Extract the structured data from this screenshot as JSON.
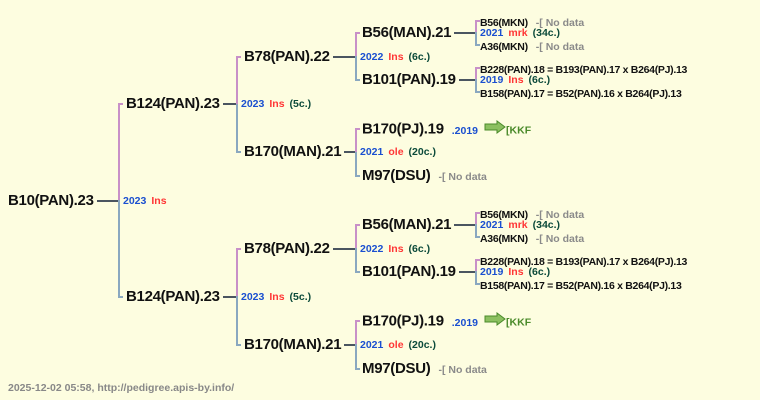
{
  "colors": {
    "year": "#1a4fd0",
    "class": "#ff3535",
    "count": "#0b4a3a",
    "no_data": "#8a8a8a",
    "link": "#4a8a2a"
  },
  "tree": {
    "name": "B10(PAN).23",
    "label": {
      "year": "2023",
      "cls": "Ins",
      "count": ""
    },
    "children": [
      {
        "name": "B124(PAN).23",
        "label": {
          "year": "2023",
          "cls": "Ins",
          "count": "(5c.)"
        },
        "children": [
          {
            "name": "B78(PAN).22",
            "label": {
              "year": "2022",
              "cls": "Ins",
              "count": "(6c.)"
            },
            "children": [
              {
                "name": "B56(MAN).21",
                "label": {
                  "year": "2021",
                  "cls": "mrk",
                  "count": "(34c.)"
                },
                "children": [
                  {
                    "name": "B56(MKN)",
                    "note": "-[ No data"
                  },
                  {
                    "name": "A36(MKN)",
                    "note": "-[ No data"
                  }
                ]
              },
              {
                "name": "B101(PAN).19",
                "label": {
                  "year": "2019",
                  "cls": "Ins",
                  "count": "(6c.)"
                },
                "children": [
                  {
                    "name": "B228(PAN).18 = B193(PAN).17 x B264(PJ).13"
                  },
                  {
                    "name": "B158(PAN).17 = B52(PAN).16 x B264(PJ).13"
                  }
                ]
              }
            ]
          },
          {
            "name": "B170(MAN).21",
            "label": {
              "year": "2021",
              "cls": "ole",
              "count": "(20c.)"
            },
            "children": [
              {
                "name": "B170(PJ).19",
                "link_year": ".2019",
                "link_target": "[KKF",
                "icon": "arrow-right-icon"
              },
              {
                "name": "M97(DSU)",
                "note": "-[ No data"
              }
            ]
          }
        ]
      },
      {
        "name": "B124(PAN).23",
        "label": {
          "year": "2023",
          "cls": "Ins",
          "count": "(5c.)"
        },
        "children": [
          {
            "name": "B78(PAN).22",
            "label": {
              "year": "2022",
              "cls": "Ins",
              "count": "(6c.)"
            },
            "children": [
              {
                "name": "B56(MAN).21",
                "label": {
                  "year": "2021",
                  "cls": "mrk",
                  "count": "(34c.)"
                },
                "children": [
                  {
                    "name": "B56(MKN)",
                    "note": "-[ No data"
                  },
                  {
                    "name": "A36(MKN)",
                    "note": "-[ No data"
                  }
                ]
              },
              {
                "name": "B101(PAN).19",
                "label": {
                  "year": "2019",
                  "cls": "Ins",
                  "count": "(6c.)"
                },
                "children": [
                  {
                    "name": "B228(PAN).18 = B193(PAN).17 x B264(PJ).13"
                  },
                  {
                    "name": "B158(PAN).17 = B52(PAN).16 x B264(PJ).13"
                  }
                ]
              }
            ]
          },
          {
            "name": "B170(MAN).21",
            "label": {
              "year": "2021",
              "cls": "ole",
              "count": "(20c.)"
            },
            "children": [
              {
                "name": "B170(PJ).19",
                "link_year": ".2019",
                "link_target": "[KKF",
                "icon": "arrow-right-icon"
              },
              {
                "name": "M97(DSU)",
                "note": "-[ No data"
              }
            ]
          }
        ]
      }
    ]
  },
  "footer": "2025-12-02 05:58, http://pedigree.apis-by.info/"
}
